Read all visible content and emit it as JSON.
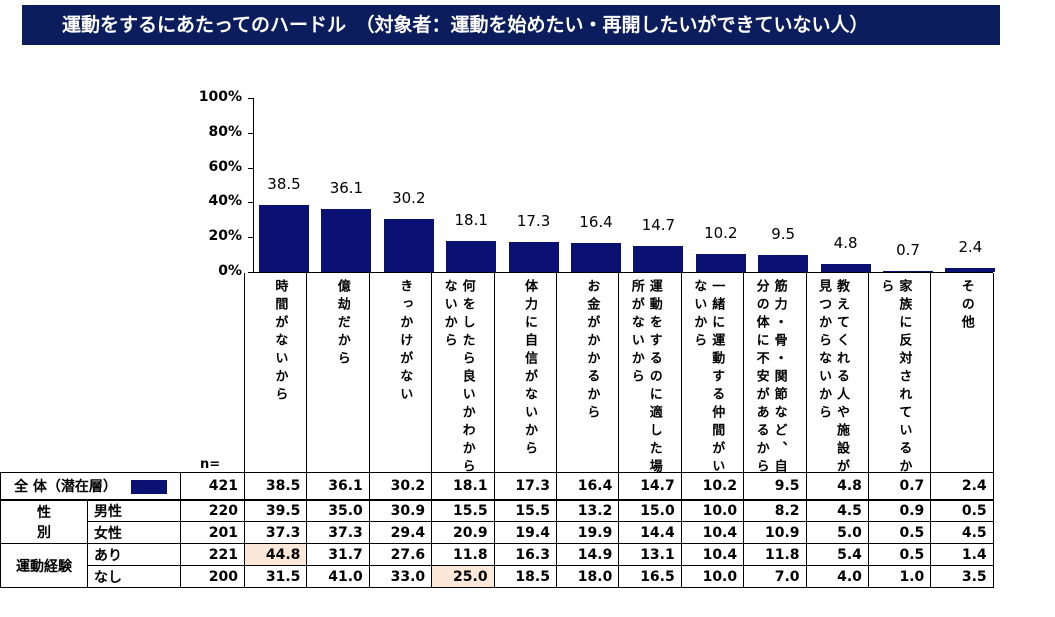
{
  "title": "運動をするにあたってのハードル　（対象者：運動を始めたい・再開したいができていない人）",
  "chart_data": {
    "type": "bar",
    "title": "運動をするにあたってのハードル　（対象者：運動を始めたい・再開したいができていない人）",
    "ylim": [
      0,
      100
    ],
    "yticks": [
      "0%",
      "20%",
      "40%",
      "60%",
      "80%",
      "100%"
    ],
    "bar_color": "#0a1172",
    "categories": [
      "時間がないから",
      "億劫だから",
      "きっかけがない",
      "何をしたら良いかわからないから",
      "体力に自信がないから",
      "お金がかかるから",
      "運動をするのに適した場所がないから",
      "一緒に運動する仲間がいないから",
      "筋力・骨・関節など、自分の体に不安があるから",
      "教えてくれる人や施設が見つからないから",
      "家族に反対されているから",
      "その他"
    ],
    "values": [
      38.5,
      36.1,
      30.2,
      18.1,
      17.3,
      16.4,
      14.7,
      10.2,
      9.5,
      4.8,
      0.7,
      2.4
    ],
    "value_labels": [
      "38.5",
      "36.1",
      "30.2",
      "18.1",
      "17.3",
      "16.4",
      "14.7",
      "10.2",
      "9.5",
      "4.8",
      "0.7",
      "2.4"
    ]
  },
  "table": {
    "n_label": "n=",
    "highlight_color": "#fce8d8",
    "rows": [
      {
        "group": "全 体（潜在層）",
        "label": "",
        "n": "421",
        "values": [
          "38.5",
          "36.1",
          "30.2",
          "18.1",
          "17.3",
          "16.4",
          "14.7",
          "10.2",
          "9.5",
          "4.8",
          "0.7",
          "2.4"
        ]
      },
      {
        "group": "性\n別",
        "label": "男性",
        "n": "220",
        "values": [
          "39.5",
          "35.0",
          "30.9",
          "15.5",
          "15.5",
          "13.2",
          "15.0",
          "10.0",
          "8.2",
          "4.5",
          "0.9",
          "0.5"
        ]
      },
      {
        "group": "",
        "label": "女性",
        "n": "201",
        "values": [
          "37.3",
          "37.3",
          "29.4",
          "20.9",
          "19.4",
          "19.9",
          "14.4",
          "10.4",
          "10.9",
          "5.0",
          "0.5",
          "4.5"
        ]
      },
      {
        "group": "運動経験",
        "label": "あり",
        "n": "221",
        "values": [
          "44.8",
          "31.7",
          "27.6",
          "11.8",
          "16.3",
          "14.9",
          "13.1",
          "10.4",
          "11.8",
          "5.4",
          "0.5",
          "1.4"
        ],
        "highlight": [
          0
        ]
      },
      {
        "group": "",
        "label": "なし",
        "n": "200",
        "values": [
          "31.5",
          "41.0",
          "33.0",
          "25.0",
          "18.5",
          "18.0",
          "16.5",
          "10.0",
          "7.0",
          "4.0",
          "1.0",
          "3.5"
        ],
        "highlight": [
          3
        ]
      }
    ]
  }
}
